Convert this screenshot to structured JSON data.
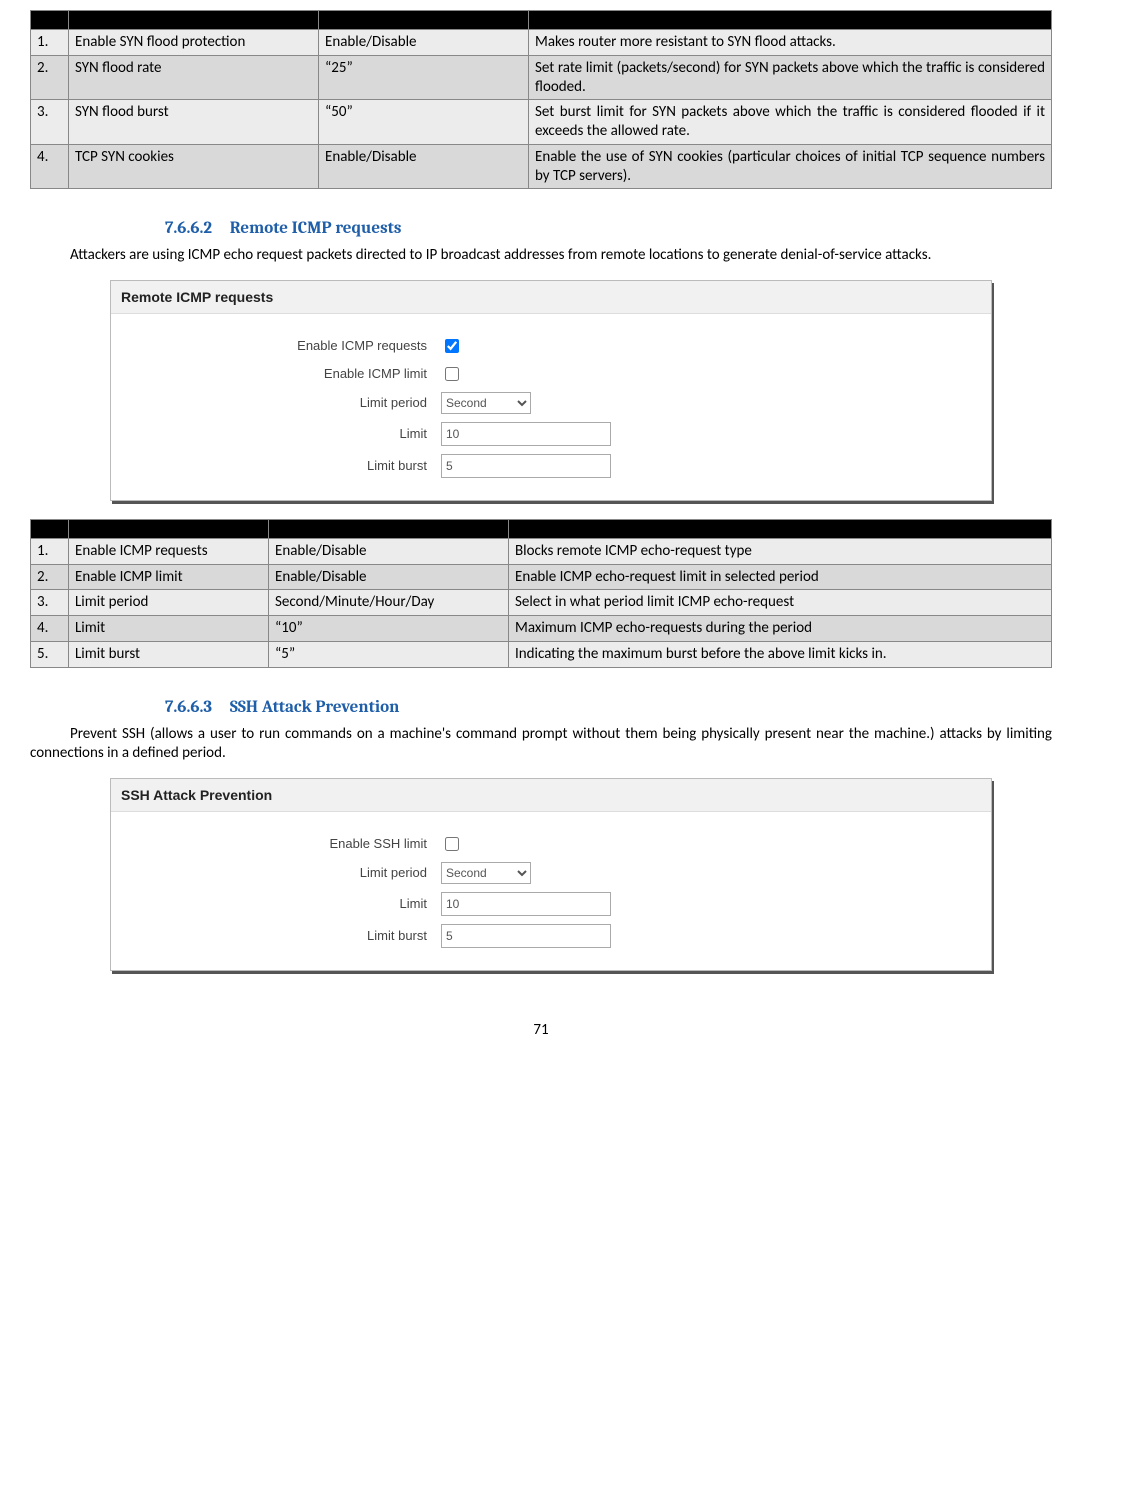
{
  "table1": {
    "rows": [
      {
        "n": "1.",
        "name": "Enable SYN flood protection",
        "val": "Enable/Disable",
        "expl": "Makes router more resistant to SYN flood attacks."
      },
      {
        "n": "2.",
        "name": "SYN flood rate",
        "val": "“25”",
        "expl": "Set rate limit (packets/second) for SYN packets above which the traffic is considered  flooded."
      },
      {
        "n": "3.",
        "name": "SYN flood burst",
        "val": "“50”",
        "expl": "Set burst limit for SYN packets above which the traffic is considered flooded if it exceeds the allowed rate."
      },
      {
        "n": "4.",
        "name": "TCP SYN cookies",
        "val": "Enable/Disable",
        "expl": "Enable the use of SYN cookies (particular choices of initial TCP sequence numbers by TCP servers)."
      }
    ]
  },
  "sec1": {
    "num": "7.6.6.2",
    "title": "Remote ICMP requests"
  },
  "para1": "Attackers are using ICMP echo request packets directed to IP broadcast addresses from remote locations to generate denial-of-service attacks.",
  "shot1": {
    "title": "Remote ICMP requests",
    "enable_req_label": "Enable ICMP requests",
    "enable_req_checked": true,
    "enable_limit_label": "Enable ICMP limit",
    "enable_limit_checked": false,
    "period_label": "Limit period",
    "period_value": "Second",
    "limit_label": "Limit",
    "limit_value": "10",
    "burst_label": "Limit burst",
    "burst_value": "5"
  },
  "table2": {
    "rows": [
      {
        "n": "1.",
        "name": "Enable ICMP requests",
        "val": "Enable/Disable",
        "expl": "Blocks remote ICMP echo-request type"
      },
      {
        "n": "2.",
        "name": "Enable ICMP limit",
        "val": "Enable/Disable",
        "expl": "Enable ICMP echo-request limit in selected period"
      },
      {
        "n": "3.",
        "name": "Limit period",
        "val": "Second/Minute/Hour/Day",
        "expl": "Select in what period limit ICMP echo-request"
      },
      {
        "n": "4.",
        "name": "Limit",
        "val": "“10”",
        "expl": "Maximum ICMP echo-requests during the period"
      },
      {
        "n": "5.",
        "name": "Limit burst",
        "val": "“5”",
        "expl": "Indicating the maximum burst before the above limit kicks in."
      }
    ]
  },
  "sec2": {
    "num": "7.6.6.3",
    "title": "SSH Attack Prevention"
  },
  "para2": "Prevent SSH (allows a user to run commands on a machine's command prompt without them being physically present near the machine.) attacks by limiting connections in a defined period.",
  "shot2": {
    "title": "SSH Attack Prevention",
    "enable_label": "Enable SSH limit",
    "enable_checked": false,
    "period_label": "Limit period",
    "period_value": "Second",
    "limit_label": "Limit",
    "limit_value": "10",
    "burst_label": "Limit burst",
    "burst_value": "5"
  },
  "page_number": "71"
}
